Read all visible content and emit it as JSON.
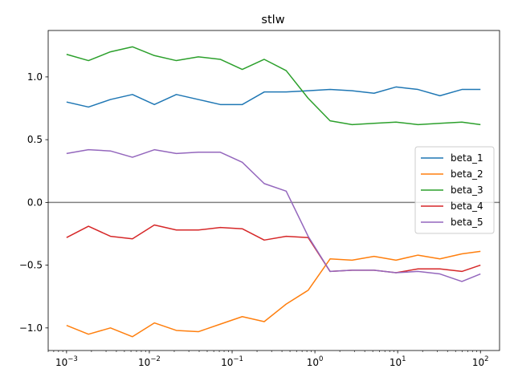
{
  "chart_data": {
    "type": "line",
    "title": "stlw",
    "xlabel": "",
    "ylabel": "",
    "xscale": "log",
    "xlim": [
      0.0006,
      170
    ],
    "ylim": [
      -1.18,
      1.37
    ],
    "x_ticks": [
      {
        "value": 0.001,
        "base": "10",
        "exp": "−3"
      },
      {
        "value": 0.01,
        "base": "10",
        "exp": "−2"
      },
      {
        "value": 0.1,
        "base": "10",
        "exp": "−1"
      },
      {
        "value": 1,
        "base": "10",
        "exp": "0"
      },
      {
        "value": 10,
        "base": "10",
        "exp": "1"
      },
      {
        "value": 100,
        "base": "10",
        "exp": "2"
      }
    ],
    "y_ticks": [
      {
        "value": 1.0,
        "label": "1.0"
      },
      {
        "value": 0.5,
        "label": "0.5"
      },
      {
        "value": 0.0,
        "label": "0.0"
      },
      {
        "value": -0.5,
        "label": "−0.5"
      },
      {
        "value": -1.0,
        "label": "−1.0"
      }
    ],
    "hline": {
      "y": 0,
      "color": "#808080"
    },
    "grid": false,
    "legend": "center-right",
    "x": [
      0.001,
      0.00184,
      0.00339,
      0.00625,
      0.0115,
      0.0212,
      0.0391,
      0.072,
      0.1326,
      0.2442,
      0.4498,
      0.8286,
      1.526,
      2.811,
      5.179,
      9.541,
      17.58,
      32.37,
      59.64,
      100
    ],
    "series": [
      {
        "name": "beta_1",
        "color": "#1f77b4",
        "values": [
          0.8,
          0.76,
          0.82,
          0.86,
          0.78,
          0.86,
          0.82,
          0.78,
          0.78,
          0.88,
          0.88,
          0.89,
          0.9,
          0.89,
          0.87,
          0.92,
          0.9,
          0.85,
          0.9,
          0.9
        ]
      },
      {
        "name": "beta_2",
        "color": "#ff7f0e",
        "values": [
          -0.98,
          -1.05,
          -1.0,
          -1.07,
          -0.96,
          -1.02,
          -1.03,
          -0.97,
          -0.91,
          -0.95,
          -0.81,
          -0.7,
          -0.45,
          -0.46,
          -0.43,
          -0.46,
          -0.42,
          -0.45,
          -0.41,
          -0.39
        ]
      },
      {
        "name": "beta_3",
        "color": "#2ca02c",
        "values": [
          1.18,
          1.13,
          1.2,
          1.24,
          1.17,
          1.13,
          1.16,
          1.14,
          1.06,
          1.14,
          1.05,
          0.83,
          0.65,
          0.62,
          0.63,
          0.64,
          0.62,
          0.63,
          0.64,
          0.62
        ]
      },
      {
        "name": "beta_4",
        "color": "#d62728",
        "values": [
          -0.28,
          -0.19,
          -0.27,
          -0.29,
          -0.18,
          -0.22,
          -0.22,
          -0.2,
          -0.21,
          -0.3,
          -0.27,
          -0.28,
          -0.55,
          -0.54,
          -0.54,
          -0.56,
          -0.53,
          -0.53,
          -0.55,
          -0.5
        ]
      },
      {
        "name": "beta_5",
        "color": "#9467bd",
        "values": [
          0.39,
          0.42,
          0.41,
          0.36,
          0.42,
          0.39,
          0.4,
          0.4,
          0.32,
          0.15,
          0.09,
          -0.27,
          -0.55,
          -0.54,
          -0.54,
          -0.56,
          -0.55,
          -0.57,
          -0.63,
          -0.57
        ]
      }
    ]
  }
}
